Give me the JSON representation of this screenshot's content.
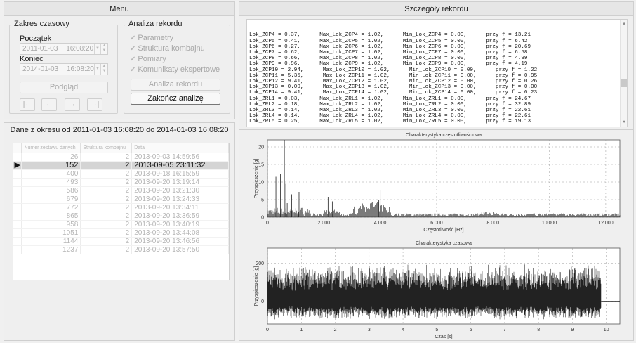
{
  "menu": {
    "title": "Menu",
    "time_range": {
      "title": "Zakres czasowy",
      "start_label": "Początek",
      "start_date": "2011-01-03",
      "start_time": "16:08:20",
      "end_label": "Koniec",
      "end_date": "2014-01-03",
      "end_time": "16:08:20",
      "preview_button": "Podgląd",
      "nav_buttons": [
        "|←",
        "←",
        "→",
        "→|"
      ]
    },
    "analysis": {
      "title": "Analiza rekordu",
      "checkboxes": [
        "Parametry",
        "Struktura kombajnu",
        "Pomiary",
        "Komunikaty ekspertowe"
      ],
      "analyze_button": "Analiza rekordu",
      "finish_button": "Zakończ analizę"
    }
  },
  "data_panel": {
    "title": "Dane z okresu od 2011-01-03 16:08:20 do 2014-01-03 16:08:20",
    "columns": [
      "Numer zestawu danych",
      "Struktura kombajnu",
      "Data"
    ],
    "rows": [
      {
        "num": "26",
        "struct": "2",
        "date": "2013-09-03 14:59:56"
      },
      {
        "num": "152",
        "struct": "2",
        "date": "2013-09-05 23:11:32",
        "selected": true
      },
      {
        "num": "400",
        "struct": "2",
        "date": "2013-09-18 16:15:59"
      },
      {
        "num": "493",
        "struct": "2",
        "date": "2013-09-20 13:19:14"
      },
      {
        "num": "586",
        "struct": "2",
        "date": "2013-09-20 13:21:30"
      },
      {
        "num": "679",
        "struct": "2",
        "date": "2013-09-20 13:24:33"
      },
      {
        "num": "772",
        "struct": "2",
        "date": "2013-09-20 13:34:11"
      },
      {
        "num": "865",
        "struct": "2",
        "date": "2013-09-20 13:36:59"
      },
      {
        "num": "958",
        "struct": "2",
        "date": "2013-09-20 13:40:19"
      },
      {
        "num": "1051",
        "struct": "2",
        "date": "2013-09-20 13:44:08"
      },
      {
        "num": "1144",
        "struct": "2",
        "date": "2013-09-20 13:46:56"
      },
      {
        "num": "1237",
        "struct": "2",
        "date": "2013-09-20 13:57:50"
      }
    ]
  },
  "details": {
    "title": "Szczegóły rekordu",
    "lines": [
      "Lok_ZCP4 = 0.37,      Max_Lok_ZCP4 = 1.02,      Min_Lok_ZCP4 = 0.00,      przy f = 13.21",
      "Lok_ZCP5 = 0.41,      Max_Lok_ZCP5 = 1.02,      Min_Lok_ZCP5 = 0.00,      przy f = 6.42",
      "Lok_ZCP6 = 0.27,      Max_Lok_ZCP6 = 1.02,      Min_Lok_ZCP6 = 0.00,      przy f = 20.69",
      "Lok_ZCP7 = 0.62,      Max_Lok_ZCP7 = 1.02,      Min_Lok_ZCP7 = 0.00,      przy f = 6.58",
      "Lok_ZCP8 = 0.66,      Max_Lok_ZCP8 = 1.02,      Min_Lok_ZCP8 = 0.00,      przy f = 4.99",
      "Lok_ZCP9 = 0.96,      Max_Lok_ZCP9 = 1.02,      Min_Lok_ZCP9 = 0.00,      przy f = 4.19",
      "Lok_ZCP10 = 2.94,      Max_Lok_ZCP10 = 1.02,      Min_Lok_ZCP10 = 0.00,      przy f = 1.22",
      "Lok_ZCP11 = 5.35,      Max_Lok_ZCP11 = 1.02,      Min_Lok_ZCP11 = 0.00,      przy f = 0.95",
      "Lok_ZCP12 = 9.41,      Max_Lok_ZCP12 = 1.02,      Min_Lok_ZCP12 = 0.00,      przy f = 0.26",
      "Lok_ZCP13 = 0.00,      Max_Lok_ZCP13 = 1.02,      Min_Lok_ZCP13 = 0.00,      przy f = 0.00",
      "Lok_ZCP14 = 9.41,      Max_Lok_ZCP14 = 1.02,      Min_Lok_ZCP14 = 0.00,      przy f = 0.23",
      "Lok_ZRL1 = 0.03,      Max_Lok_ZRL1 = 1.02,      Min_Lok_ZRL1 = 0.00,      przy f = 24.67",
      "Lok_ZRL2 = 0.18,      Max_Lok_ZRL2 = 1.02,      Min_Lok_ZRL2 = 0.00,      przy f = 32.89",
      "Lok_ZRL3 = 0.14,      Max_Lok_ZRL3 = 1.02,      Min_Lok_ZRL3 = 0.00,      przy f = 22.61",
      "Lok_ZRL4 = 0.14,      Max_Lok_ZRL4 = 1.02,      Min_Lok_ZRL4 = 0.00,      przy f = 22.61",
      "Lok_ZRL5 = 0.25,      Max_Lok_ZRL5 = 1.02,      Min_Lok_ZRL5 = 0.00,      przy f = 19.13"
    ]
  },
  "chart_data": [
    {
      "type": "line",
      "title": "Charakterystyka częstotliwościowa",
      "xlabel": "Częstotliwość [Hz]",
      "ylabel": "Przyspieszenie [g]",
      "xlim": [
        0,
        12500
      ],
      "ylim": [
        0,
        22
      ],
      "xticks": [
        "0",
        "2 000",
        "4 000",
        "6 000",
        "8 000",
        "10 000",
        "12 000"
      ],
      "yticks": [
        "0",
        "5",
        "10",
        "15",
        "20"
      ],
      "grid": true,
      "peaks": [
        {
          "x": 300,
          "y": 11.5
        },
        {
          "x": 460,
          "y": 12.2
        },
        {
          "x": 600,
          "y": 22
        },
        {
          "x": 650,
          "y": 9.5
        },
        {
          "x": 700,
          "y": 4.0
        },
        {
          "x": 860,
          "y": 6.5
        },
        {
          "x": 1120,
          "y": 7.2
        },
        {
          "x": 2150,
          "y": 5.8
        },
        {
          "x": 2300,
          "y": 4.5
        },
        {
          "x": 3600,
          "y": 6.3
        },
        {
          "x": 3950,
          "y": 5.0
        },
        {
          "x": 4000,
          "y": 7.8
        }
      ],
      "color": "#222222"
    },
    {
      "type": "line",
      "title": "Charakterystyka czasowa",
      "xlabel": "Czas [s]",
      "ylabel": "Przyspieszenie [g]",
      "xlim": [
        0,
        10.4
      ],
      "ylim": [
        -120,
        280
      ],
      "xticks": [
        "0",
        "1",
        "2",
        "3",
        "4",
        "5",
        "6",
        "7",
        "8",
        "9",
        "10"
      ],
      "yticks": [
        "0",
        "200"
      ],
      "grid": true,
      "signal_end": 9.85,
      "signal_amplitude": 200,
      "color": "#222222"
    }
  ]
}
